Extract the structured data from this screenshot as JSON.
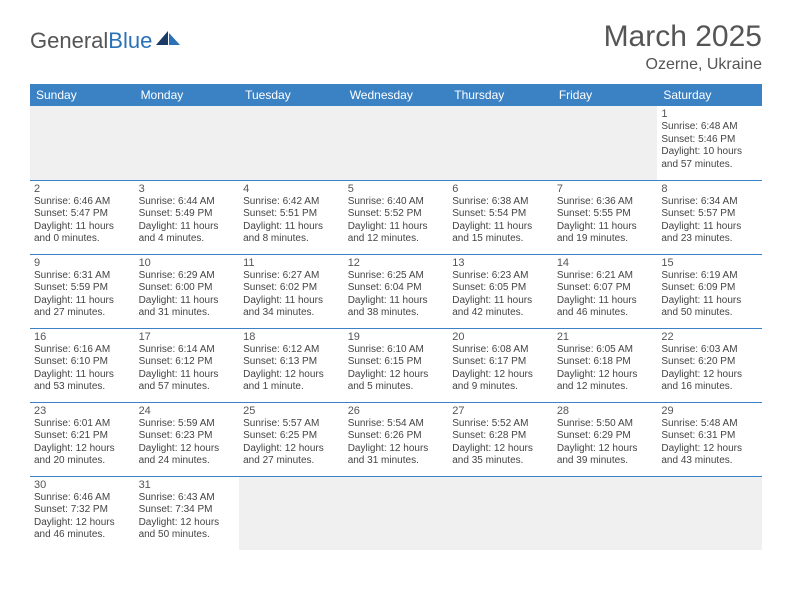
{
  "brand": {
    "name_part1": "General",
    "name_part2": "Blue"
  },
  "title": "March 2025",
  "location": "Ozerne, Ukraine",
  "weekdays": [
    "Sunday",
    "Monday",
    "Tuesday",
    "Wednesday",
    "Thursday",
    "Friday",
    "Saturday"
  ],
  "weeks": [
    [
      null,
      null,
      null,
      null,
      null,
      null,
      {
        "d": "1",
        "sr": "Sunrise: 6:48 AM",
        "ss": "Sunset: 5:46 PM",
        "dl": "Daylight: 10 hours and 57 minutes."
      }
    ],
    [
      {
        "d": "2",
        "sr": "Sunrise: 6:46 AM",
        "ss": "Sunset: 5:47 PM",
        "dl": "Daylight: 11 hours and 0 minutes."
      },
      {
        "d": "3",
        "sr": "Sunrise: 6:44 AM",
        "ss": "Sunset: 5:49 PM",
        "dl": "Daylight: 11 hours and 4 minutes."
      },
      {
        "d": "4",
        "sr": "Sunrise: 6:42 AM",
        "ss": "Sunset: 5:51 PM",
        "dl": "Daylight: 11 hours and 8 minutes."
      },
      {
        "d": "5",
        "sr": "Sunrise: 6:40 AM",
        "ss": "Sunset: 5:52 PM",
        "dl": "Daylight: 11 hours and 12 minutes."
      },
      {
        "d": "6",
        "sr": "Sunrise: 6:38 AM",
        "ss": "Sunset: 5:54 PM",
        "dl": "Daylight: 11 hours and 15 minutes."
      },
      {
        "d": "7",
        "sr": "Sunrise: 6:36 AM",
        "ss": "Sunset: 5:55 PM",
        "dl": "Daylight: 11 hours and 19 minutes."
      },
      {
        "d": "8",
        "sr": "Sunrise: 6:34 AM",
        "ss": "Sunset: 5:57 PM",
        "dl": "Daylight: 11 hours and 23 minutes."
      }
    ],
    [
      {
        "d": "9",
        "sr": "Sunrise: 6:31 AM",
        "ss": "Sunset: 5:59 PM",
        "dl": "Daylight: 11 hours and 27 minutes."
      },
      {
        "d": "10",
        "sr": "Sunrise: 6:29 AM",
        "ss": "Sunset: 6:00 PM",
        "dl": "Daylight: 11 hours and 31 minutes."
      },
      {
        "d": "11",
        "sr": "Sunrise: 6:27 AM",
        "ss": "Sunset: 6:02 PM",
        "dl": "Daylight: 11 hours and 34 minutes."
      },
      {
        "d": "12",
        "sr": "Sunrise: 6:25 AM",
        "ss": "Sunset: 6:04 PM",
        "dl": "Daylight: 11 hours and 38 minutes."
      },
      {
        "d": "13",
        "sr": "Sunrise: 6:23 AM",
        "ss": "Sunset: 6:05 PM",
        "dl": "Daylight: 11 hours and 42 minutes."
      },
      {
        "d": "14",
        "sr": "Sunrise: 6:21 AM",
        "ss": "Sunset: 6:07 PM",
        "dl": "Daylight: 11 hours and 46 minutes."
      },
      {
        "d": "15",
        "sr": "Sunrise: 6:19 AM",
        "ss": "Sunset: 6:09 PM",
        "dl": "Daylight: 11 hours and 50 minutes."
      }
    ],
    [
      {
        "d": "16",
        "sr": "Sunrise: 6:16 AM",
        "ss": "Sunset: 6:10 PM",
        "dl": "Daylight: 11 hours and 53 minutes."
      },
      {
        "d": "17",
        "sr": "Sunrise: 6:14 AM",
        "ss": "Sunset: 6:12 PM",
        "dl": "Daylight: 11 hours and 57 minutes."
      },
      {
        "d": "18",
        "sr": "Sunrise: 6:12 AM",
        "ss": "Sunset: 6:13 PM",
        "dl": "Daylight: 12 hours and 1 minute."
      },
      {
        "d": "19",
        "sr": "Sunrise: 6:10 AM",
        "ss": "Sunset: 6:15 PM",
        "dl": "Daylight: 12 hours and 5 minutes."
      },
      {
        "d": "20",
        "sr": "Sunrise: 6:08 AM",
        "ss": "Sunset: 6:17 PM",
        "dl": "Daylight: 12 hours and 9 minutes."
      },
      {
        "d": "21",
        "sr": "Sunrise: 6:05 AM",
        "ss": "Sunset: 6:18 PM",
        "dl": "Daylight: 12 hours and 12 minutes."
      },
      {
        "d": "22",
        "sr": "Sunrise: 6:03 AM",
        "ss": "Sunset: 6:20 PM",
        "dl": "Daylight: 12 hours and 16 minutes."
      }
    ],
    [
      {
        "d": "23",
        "sr": "Sunrise: 6:01 AM",
        "ss": "Sunset: 6:21 PM",
        "dl": "Daylight: 12 hours and 20 minutes."
      },
      {
        "d": "24",
        "sr": "Sunrise: 5:59 AM",
        "ss": "Sunset: 6:23 PM",
        "dl": "Daylight: 12 hours and 24 minutes."
      },
      {
        "d": "25",
        "sr": "Sunrise: 5:57 AM",
        "ss": "Sunset: 6:25 PM",
        "dl": "Daylight: 12 hours and 27 minutes."
      },
      {
        "d": "26",
        "sr": "Sunrise: 5:54 AM",
        "ss": "Sunset: 6:26 PM",
        "dl": "Daylight: 12 hours and 31 minutes."
      },
      {
        "d": "27",
        "sr": "Sunrise: 5:52 AM",
        "ss": "Sunset: 6:28 PM",
        "dl": "Daylight: 12 hours and 35 minutes."
      },
      {
        "d": "28",
        "sr": "Sunrise: 5:50 AM",
        "ss": "Sunset: 6:29 PM",
        "dl": "Daylight: 12 hours and 39 minutes."
      },
      {
        "d": "29",
        "sr": "Sunrise: 5:48 AM",
        "ss": "Sunset: 6:31 PM",
        "dl": "Daylight: 12 hours and 43 minutes."
      }
    ],
    [
      {
        "d": "30",
        "sr": "Sunrise: 6:46 AM",
        "ss": "Sunset: 7:32 PM",
        "dl": "Daylight: 12 hours and 46 minutes."
      },
      {
        "d": "31",
        "sr": "Sunrise: 6:43 AM",
        "ss": "Sunset: 7:34 PM",
        "dl": "Daylight: 12 hours and 50 minutes."
      },
      null,
      null,
      null,
      null,
      null
    ]
  ],
  "colors": {
    "header_bg": "#3b82c4",
    "header_text": "#ffffff",
    "border": "#3b82c4",
    "body_text": "#444444",
    "title_text": "#555555",
    "blank_bg": "#f0f0f0"
  }
}
